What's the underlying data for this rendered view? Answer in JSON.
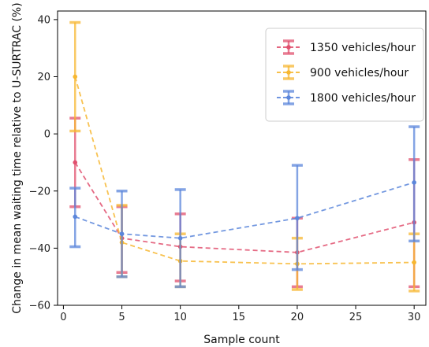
{
  "chart_data": {
    "type": "line",
    "title": "",
    "xlabel": "Sample count",
    "ylabel": "Change in mean waiting time relative to U-SURTRAC (%)",
    "xlim": [
      -0.5,
      31
    ],
    "ylim": [
      -60,
      43
    ],
    "xticks": [
      0,
      5,
      10,
      15,
      20,
      25,
      30
    ],
    "yticks": [
      -60,
      -40,
      -20,
      0,
      20,
      40
    ],
    "ytick_labels": [
      "−60",
      "−40",
      "−20",
      "0",
      "20",
      "40"
    ],
    "grid": false,
    "legend_position": "top-right",
    "error_bars": true,
    "x": [
      1,
      5,
      10,
      20,
      30
    ],
    "series": [
      {
        "name": "1350 vehicles/hour",
        "color": "#e0506e",
        "marker": "circle",
        "values": [
          -10,
          -36.5,
          -39.5,
          -41.5,
          -31
        ],
        "err_low": [
          -25.5,
          -48.5,
          -51.5,
          -53.5,
          -53.5
        ],
        "err_high": [
          5.5,
          -25.5,
          -28,
          -29.5,
          -9
        ]
      },
      {
        "name": "900 vehicles/hour",
        "color": "#f7b731",
        "marker": "circle",
        "values": [
          20,
          -38,
          -44.5,
          -45.5,
          -45
        ],
        "err_low": [
          1,
          -50,
          -53.5,
          -54.5,
          -55
        ],
        "err_high": [
          39,
          -25,
          -35,
          -36.5,
          -35
        ]
      },
      {
        "name": "1800 vehicles/hour",
        "color": "#5b86db",
        "marker": "circle",
        "values": [
          -29,
          -35,
          -36.5,
          -29.5,
          -17
        ],
        "err_low": [
          -39.5,
          -50,
          -53.5,
          -47.5,
          -37.5
        ],
        "err_high": [
          -19,
          -20,
          -19.5,
          -11,
          2.5
        ]
      }
    ]
  }
}
